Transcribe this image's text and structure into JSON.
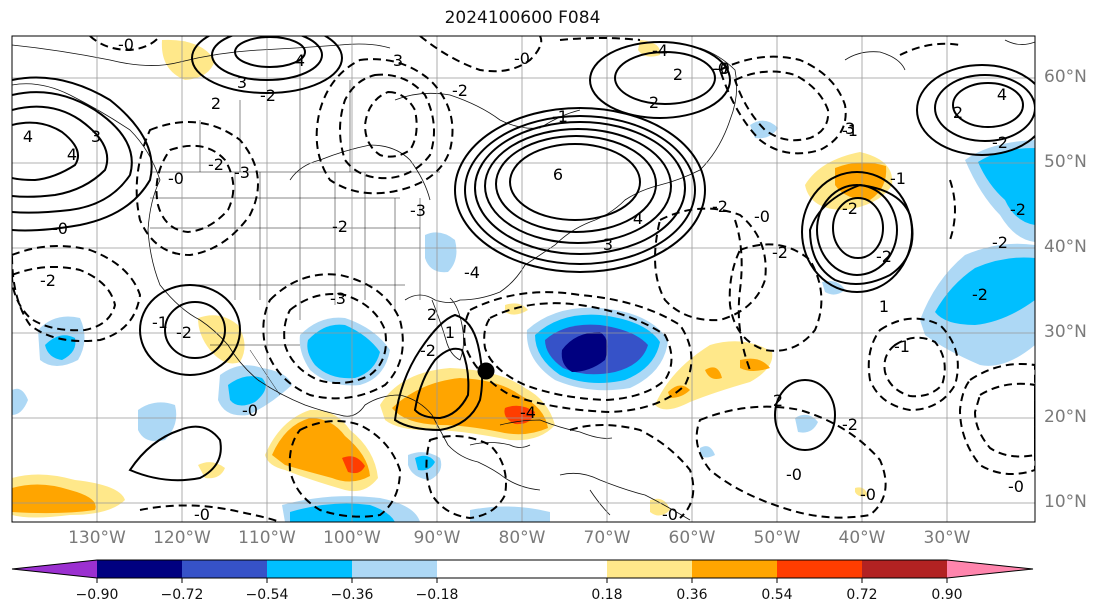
{
  "title": "2024100600 F084",
  "lon_labels": [
    "130°W",
    "120°W",
    "110°W",
    "100°W",
    "90°W",
    "80°W",
    "70°W",
    "60°W",
    "50°W",
    "40°W",
    "30°W"
  ],
  "lat_labels": [
    "60°N",
    "50°N",
    "40°N",
    "30°N",
    "20°N",
    "10°N"
  ],
  "colorbar": {
    "ticks": [
      "−0.90",
      "−0.72",
      "−0.54",
      "−0.36",
      "−0.18",
      "0.18",
      "0.36",
      "0.54",
      "0.72",
      "0.90"
    ],
    "colors": [
      "#9b30d0",
      "#000080",
      "#3652c8",
      "#00bfff",
      "#add8f5",
      "#ffffff",
      "#ffe88a",
      "#ffa500",
      "#ff3d00",
      "#b22222",
      "#ff85ad"
    ]
  },
  "contour_labels": [
    "-0",
    "4",
    "3",
    "-2",
    "2",
    "-0",
    "3",
    "4",
    "-0",
    "-2",
    "-3",
    "3",
    "-2",
    "4",
    "2",
    "2",
    "-0",
    "-4",
    "-1",
    "6",
    "4",
    "3",
    "-2",
    "-3",
    "-0",
    "-2",
    "-1",
    "-2",
    "-3",
    "-4",
    "-2",
    "-0",
    "-4",
    "2",
    "1",
    "4",
    "2",
    "-0",
    "-1",
    "-2",
    "-1",
    "1",
    "-2",
    "-2",
    "-2",
    "-2",
    "3",
    "-2",
    "-2",
    "-0",
    "-1",
    "2",
    "-0",
    "-2",
    "-2",
    "-0",
    "-0",
    "-0",
    "-0"
  ],
  "marker": "storm-center"
}
